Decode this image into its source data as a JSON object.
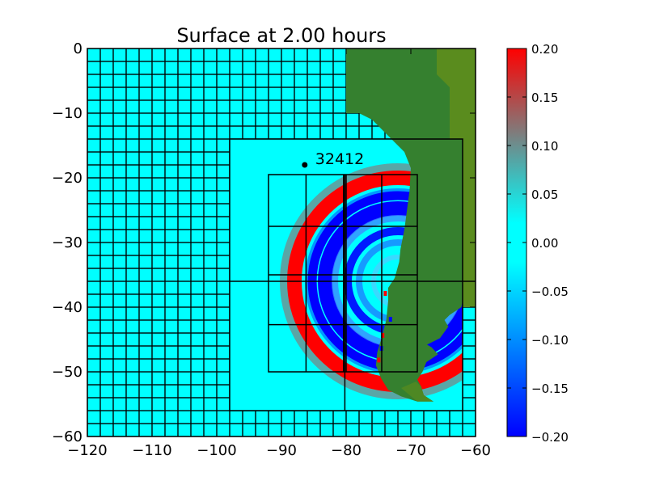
{
  "chart_data": {
    "type": "heatmap",
    "title": "Surface at 2.00 hours",
    "xlabel": "",
    "ylabel": "",
    "xlim": [
      -120,
      -60
    ],
    "ylim": [
      -60,
      0
    ],
    "x_ticks": [
      -120,
      -110,
      -100,
      -90,
      -80,
      -70,
      -60
    ],
    "x_tick_labels": [
      "−120",
      "−110",
      "−100",
      "−90",
      "−80",
      "−70",
      "−60"
    ],
    "y_ticks": [
      0,
      -10,
      -20,
      -30,
      -40,
      -50,
      -60
    ],
    "y_tick_labels": [
      "0",
      "−10",
      "−20",
      "−30",
      "−40",
      "−50",
      "−60"
    ],
    "colorbar": {
      "min": -0.2,
      "max": 0.2,
      "ticks": [
        0.2,
        0.15,
        0.1,
        0.05,
        0.0,
        -0.05,
        -0.1,
        -0.15,
        -0.2
      ],
      "tick_labels": [
        "0.20",
        "0.15",
        "0.10",
        "0.05",
        "0.00",
        "−0.05",
        "−0.10",
        "−0.15",
        "−0.20"
      ],
      "colors": [
        "#0000ff",
        "#00ffff",
        "#ff0000"
      ]
    },
    "grid_levels": [
      {
        "level": 1,
        "cell_size_deg": 2,
        "extent": [
          -120,
          -60,
          -60,
          0
        ]
      },
      {
        "level": 2,
        "extent": [
          -98,
          -62,
          -56,
          -14
        ]
      },
      {
        "level": 3,
        "extent": [
          -92,
          -69,
          -50,
          -19.5
        ]
      }
    ],
    "wave_source": {
      "lon": -72,
      "lat": -36
    },
    "gauges": [
      {
        "id": "32412",
        "lon": -86.4,
        "lat": -18
      }
    ],
    "colors": {
      "still_water": "#00ffff",
      "land": "#35802f",
      "highland": "#5a8c1e",
      "crest": "#ff0000",
      "trough": "#0000ff",
      "grid_lines": "#000000"
    }
  }
}
